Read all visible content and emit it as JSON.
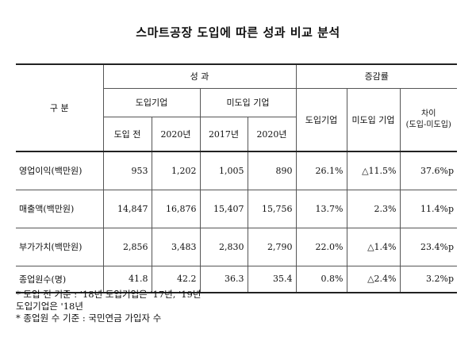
{
  "title": "스마트공장 도입에 따른 성과 비교 분석",
  "header": {
    "category": "구  분",
    "performance": "성   과",
    "change_rate": "증감률",
    "adopted": "도입기업",
    "not_adopted": "미도입 기업",
    "before_adoption": "도입 전",
    "y2020_a": "2020년",
    "y2017": "2017년",
    "y2020_b": "2020년",
    "rate_adopted": "도입기업",
    "rate_not_adopted": "미도입 기업",
    "diff_line1": "차이",
    "diff_line2": "(도입-미도입)"
  },
  "rows": [
    {
      "label": "영업이익(백만원)",
      "before": "953",
      "adopted_2020": "1,202",
      "na_2017": "1,005",
      "na_2020": "890",
      "rate_adopted": "26.1%",
      "rate_not_adopted": "△11.5%",
      "diff": "37.6%p"
    },
    {
      "label": "매출액(백만원)",
      "before": "14,847",
      "adopted_2020": "16,876",
      "na_2017": "15,407",
      "na_2020": "15,756",
      "rate_adopted": "13.7%",
      "rate_not_adopted": "2.3%",
      "diff": "11.4%p"
    },
    {
      "label": "부가가치(백만원)",
      "before": "2,856",
      "adopted_2020": "3,483",
      "na_2017": "2,830",
      "na_2020": "2,790",
      "rate_adopted": "22.0%",
      "rate_not_adopted": "△1.4%",
      "diff": "23.4%p"
    },
    {
      "label": "종업원수(명)",
      "before": "41.8",
      "adopted_2020": "42.2",
      "na_2017": "36.3",
      "na_2020": "35.4",
      "rate_adopted": "0.8%",
      "rate_not_adopted": "△2.4%",
      "diff": "3.2%p"
    }
  ],
  "notes": [
    "* 도입 전 기준 : '18년 도입기업은 '17년, '19년",
    "도입기업은 '18년",
    "* 종업원 수 기준 : 국민연금 가입자 수"
  ]
}
